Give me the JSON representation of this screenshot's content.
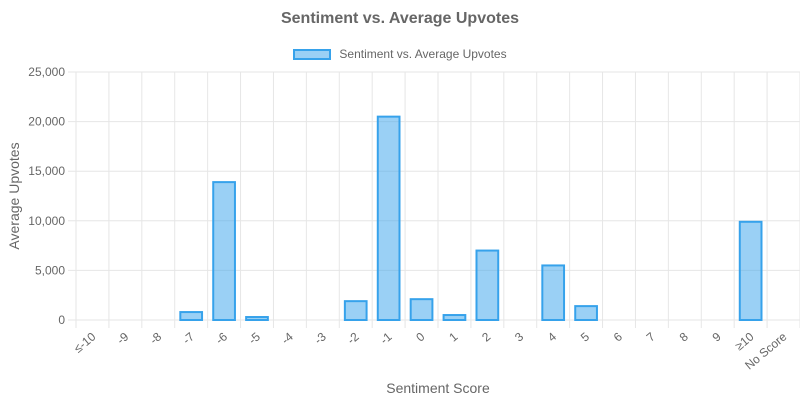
{
  "chart_data": {
    "type": "bar",
    "title": "Sentiment vs. Average Upvotes",
    "xlabel": "Sentiment Score",
    "ylabel": "Average Upvotes",
    "categories": [
      "≤-10",
      "-9",
      "-8",
      "-7",
      "-6",
      "-5",
      "-4",
      "-3",
      "-2",
      "-1",
      "0",
      "1",
      "2",
      "3",
      "4",
      "5",
      "6",
      "7",
      "8",
      "9",
      "≥10",
      "No Score"
    ],
    "series": [
      {
        "name": "Sentiment vs. Average Upvotes",
        "values": [
          0,
          0,
          0,
          800,
          13900,
          300,
          0,
          0,
          1900,
          20500,
          2100,
          500,
          7000,
          0,
          5500,
          1400,
          0,
          0,
          0,
          0,
          9900,
          0
        ]
      }
    ],
    "ylim": [
      0,
      25000
    ],
    "yticks": [
      0,
      5000,
      10000,
      15000,
      20000,
      25000
    ],
    "ytick_labels": [
      "0",
      "5,000",
      "10,000",
      "15,000",
      "20,000",
      "25,000"
    ],
    "grid": true,
    "legend_position": "top",
    "colors": {
      "bar_fill": "rgba(54,162,235,0.5)",
      "bar_border": "#36a2eb",
      "grid": "#e6e6e6",
      "text": "#666666"
    }
  }
}
